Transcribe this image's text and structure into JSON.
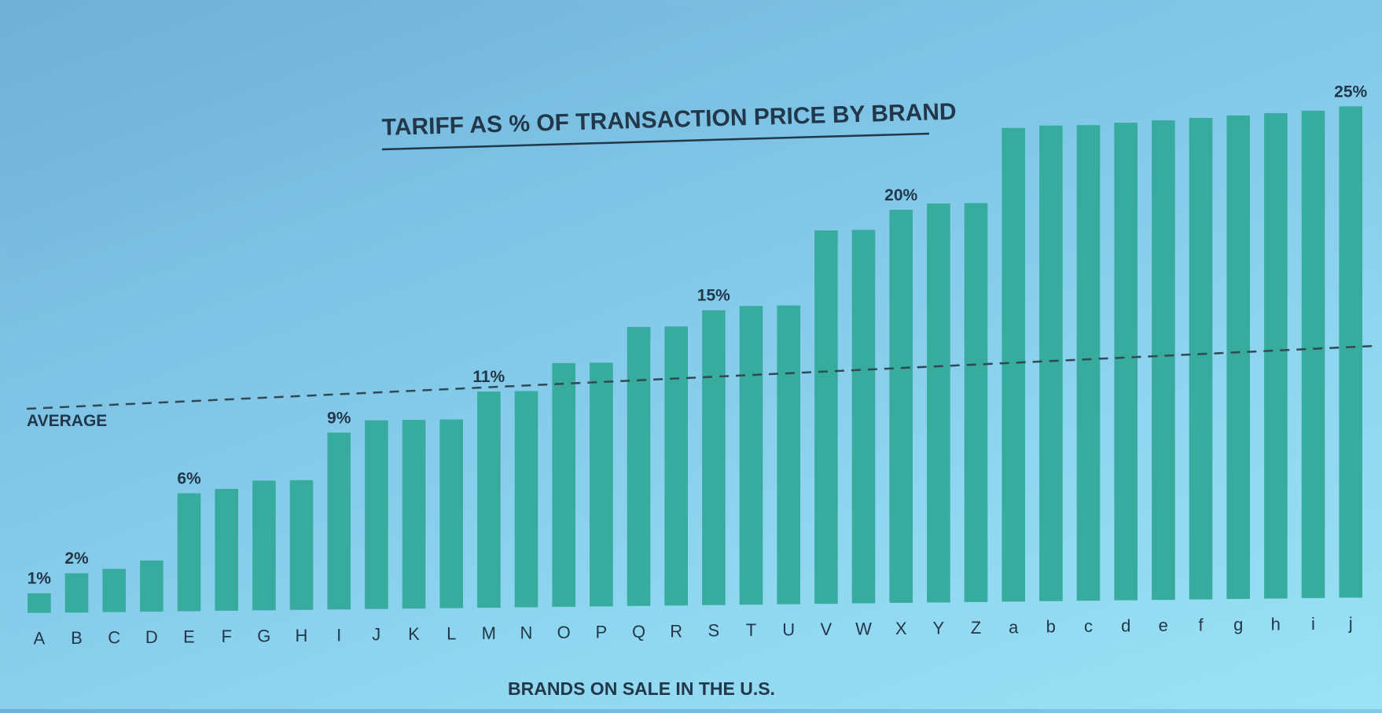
{
  "chart_data": {
    "type": "bar",
    "title": "TARIFF AS % OF TRANSACTION PRICE BY BRAND",
    "xlabel": "BRANDS ON SALE IN THE U.S.",
    "ylabel": "",
    "average_label": "AVERAGE",
    "average_value": 10.8,
    "ylim": [
      0,
      25
    ],
    "categories": [
      "A",
      "B",
      "C",
      "D",
      "E",
      "F",
      "G",
      "H",
      "I",
      "J",
      "K",
      "L",
      "M",
      "N",
      "O",
      "P",
      "Q",
      "R",
      "S",
      "T",
      "U",
      "V",
      "W",
      "X",
      "Y",
      "Z",
      "a",
      "b",
      "c",
      "d",
      "e",
      "f",
      "g",
      "h",
      "i",
      "j"
    ],
    "values": [
      1,
      2,
      2.2,
      2.6,
      6,
      6.2,
      6.6,
      6.6,
      9,
      9.6,
      9.6,
      9.6,
      11,
      11,
      12.4,
      12.4,
      14.2,
      14.2,
      15,
      15.2,
      15.2,
      19,
      19,
      20,
      20.3,
      20.3,
      24.1,
      24.2,
      24.2,
      24.3,
      24.4,
      24.5,
      24.6,
      24.7,
      24.8,
      25
    ],
    "data_labels": [
      {
        "index": 0,
        "text": "1%"
      },
      {
        "index": 1,
        "text": "2%"
      },
      {
        "index": 4,
        "text": "6%"
      },
      {
        "index": 8,
        "text": "9%"
      },
      {
        "index": 12,
        "text": "11%"
      },
      {
        "index": 18,
        "text": "15%"
      },
      {
        "index": 23,
        "text": "20%"
      },
      {
        "index": 35,
        "text": "25%"
      }
    ],
    "colors": {
      "bar": "#37ab9e",
      "text": "#22384a",
      "average_line": "#2e4a54"
    },
    "grid": false,
    "legend": "none"
  }
}
